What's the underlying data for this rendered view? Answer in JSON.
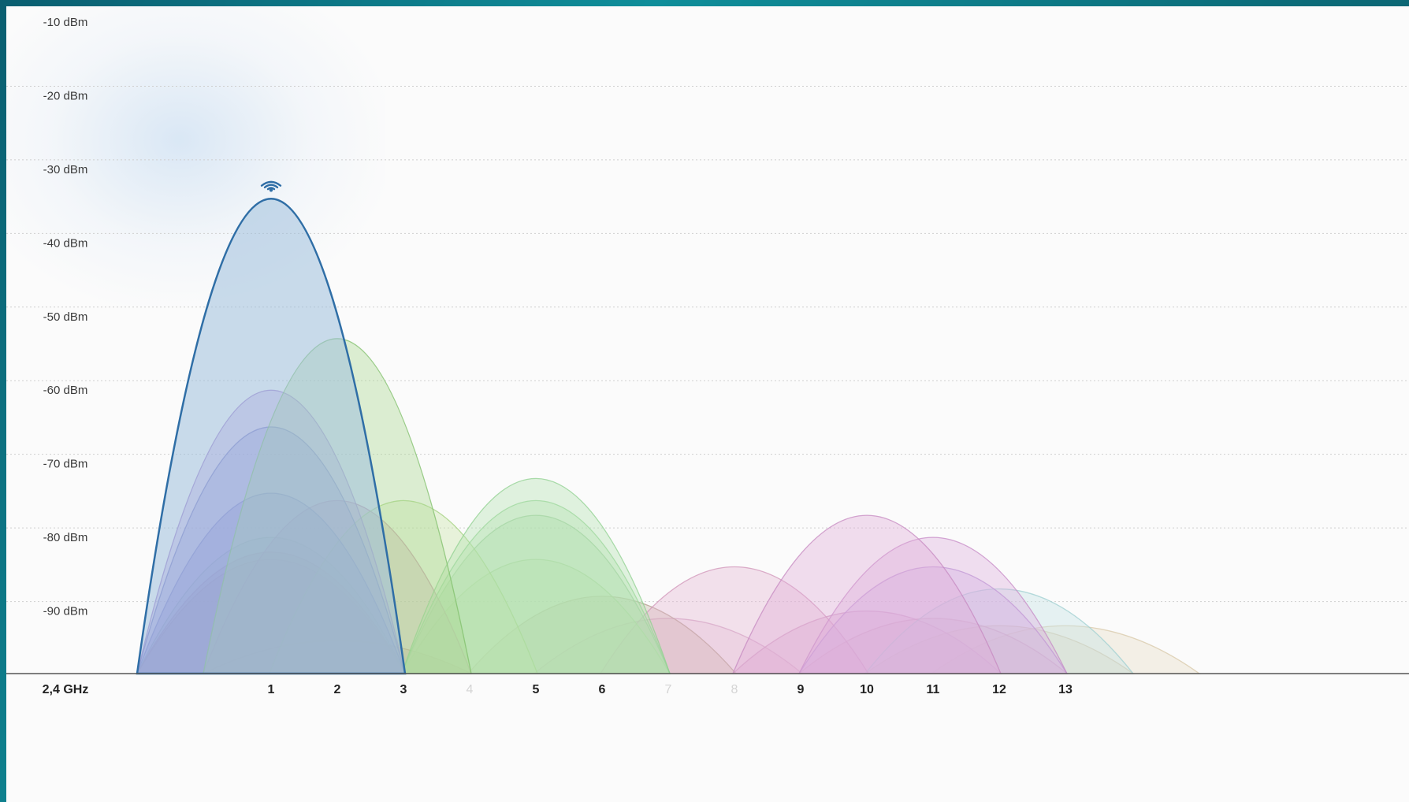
{
  "chart_data": {
    "type": "area",
    "y_axis": {
      "unit": "dBm",
      "range": [
        -98.5,
        -10
      ],
      "ticks": [
        "-10 dBm",
        "-20 dBm",
        "-30 dBm",
        "-40 dBm",
        "-50 dBm",
        "-60 dBm",
        "-70 dBm",
        "-80 dBm",
        "-90 dBm"
      ],
      "tick_values": [
        -10,
        -20,
        -30,
        -40,
        -50,
        -60,
        -70,
        -80,
        -90
      ],
      "grid": true
    },
    "x_axis": {
      "band_label": "2,4 GHz",
      "channels": [
        "1",
        "2",
        "3",
        "4",
        "5",
        "6",
        "7",
        "8",
        "9",
        "10",
        "11",
        "12",
        "13"
      ],
      "faint_channels": [
        "4",
        "7",
        "8"
      ],
      "range": [
        -1.2,
        15.2
      ]
    },
    "connected_network": {
      "channel": 1,
      "signal": -34,
      "icon": "wifi-icon",
      "color": "#2f6ea6"
    },
    "networks": [
      {
        "channel": 1,
        "signal": -34,
        "color": "#2f6ea6",
        "fill": "#9ebfdc"
      },
      {
        "channel": 1,
        "signal": -60,
        "color": "#9a6fc6",
        "fill": "#b48fe0"
      },
      {
        "channel": 1,
        "signal": -65,
        "color": "#4f5fb0",
        "fill": "#7c83d6"
      },
      {
        "channel": 1,
        "signal": -74,
        "color": "#4f5fb0",
        "fill": "#6a70d0"
      },
      {
        "channel": 1,
        "signal": -80,
        "color": "#7fb08a",
        "fill": "#a9cfb0"
      },
      {
        "channel": 1,
        "signal": -82,
        "color": "#a05a6a",
        "fill": "#b07074"
      },
      {
        "channel": 1,
        "signal": -83,
        "color": "#b0606a",
        "fill": "#b87070"
      },
      {
        "channel": 2,
        "signal": -53,
        "color": "#7fbf6a",
        "fill": "#a7d88f"
      },
      {
        "channel": 2,
        "signal": -75,
        "color": "#b86a9a",
        "fill": "#c98ab0"
      },
      {
        "channel": 2,
        "signal": -94,
        "color": "#b07a70",
        "fill": "#c49a88"
      },
      {
        "channel": 3,
        "signal": -75,
        "color": "#9fcf7a",
        "fill": "#c8e6a6"
      },
      {
        "channel": 5,
        "signal": -72,
        "color": "#8fd08f",
        "fill": "#b3e3b0"
      },
      {
        "channel": 5,
        "signal": -75,
        "color": "#8fd08f",
        "fill": "#b3e3b0"
      },
      {
        "channel": 5,
        "signal": -77,
        "color": "#8fc08f",
        "fill": "#a6d6a6"
      },
      {
        "channel": 5,
        "signal": -83,
        "color": "#a8d090",
        "fill": "#c6e4b0"
      },
      {
        "channel": 6,
        "signal": -88,
        "color": "#b09a8a",
        "fill": "#c9b3a3"
      },
      {
        "channel": 7,
        "signal": -91,
        "color": "#cf9fc0",
        "fill": "#e4c2da"
      },
      {
        "channel": 8,
        "signal": -84,
        "color": "#d094b8",
        "fill": "#e6b6d2"
      },
      {
        "channel": 10,
        "signal": -77,
        "color": "#c588c0",
        "fill": "#e0acd8"
      },
      {
        "channel": 10,
        "signal": -90,
        "color": "#c890b8",
        "fill": "#deb0cf"
      },
      {
        "channel": 11,
        "signal": -80,
        "color": "#c58ac6",
        "fill": "#dcaede"
      },
      {
        "channel": 11,
        "signal": -84,
        "color": "#b08ad0",
        "fill": "#cdb0e4"
      },
      {
        "channel": 11,
        "signal": -91,
        "color": "#c89aa8",
        "fill": "#ddbcc6"
      },
      {
        "channel": 12,
        "signal": -87,
        "color": "#9fcfd0",
        "fill": "#c2e3e4"
      },
      {
        "channel": 12,
        "signal": -92,
        "color": "#c9b89a",
        "fill": "#ded0b8"
      },
      {
        "channel": 13,
        "signal": -92,
        "color": "#d8c8a8",
        "fill": "#e8dcc6"
      }
    ]
  }
}
